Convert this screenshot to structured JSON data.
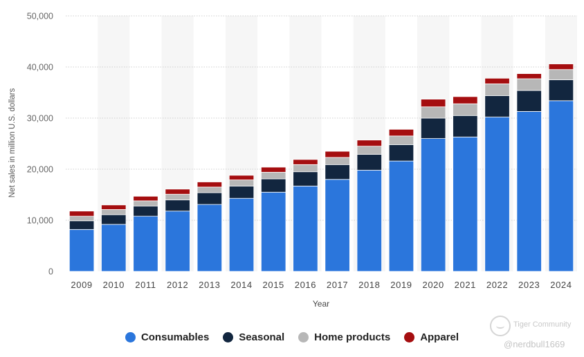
{
  "chart_data": {
    "type": "bar",
    "stacked": true,
    "categories": [
      "2009",
      "2010",
      "2011",
      "2012",
      "2013",
      "2014",
      "2015",
      "2016",
      "2017",
      "2018",
      "2019",
      "2020",
      "2021",
      "2022",
      "2023",
      "2024"
    ],
    "series": [
      {
        "name": "Consumables",
        "color": "#2b76dc",
        "values": [
          8200,
          9200,
          10800,
          11800,
          13100,
          14300,
          15500,
          16700,
          18000,
          19800,
          21600,
          26000,
          26300,
          30200,
          31300,
          33400
        ]
      },
      {
        "name": "Seasonal",
        "color": "#12263f",
        "values": [
          1700,
          1900,
          2000,
          2200,
          2300,
          2400,
          2600,
          2800,
          2900,
          3100,
          3200,
          4000,
          4200,
          4200,
          4100,
          4100
        ]
      },
      {
        "name": "Home products",
        "color": "#b7b7b7",
        "values": [
          900,
          1000,
          1000,
          1100,
          1100,
          1200,
          1300,
          1400,
          1400,
          1600,
          1700,
          2200,
          2300,
          2300,
          2300,
          2000
        ]
      },
      {
        "name": "Apparel",
        "color": "#a50e10",
        "values": [
          1000,
          900,
          900,
          1000,
          1000,
          900,
          1000,
          1000,
          1200,
          1200,
          1300,
          1500,
          1400,
          1100,
          1000,
          1100
        ]
      }
    ],
    "ylim": [
      0,
      50000
    ],
    "yticks": [
      "0",
      "10,000",
      "20,000",
      "30,000",
      "40,000",
      "50,000"
    ],
    "yticks_values": [
      0,
      10000,
      20000,
      30000,
      40000,
      50000
    ],
    "ylabel": "Net sales in million U.S. dollars",
    "xlabel": "Year",
    "grid": true,
    "legend_position": "bottom"
  },
  "watermark": {
    "brand": "Tiger Community",
    "user": "@nerdbull1669"
  }
}
